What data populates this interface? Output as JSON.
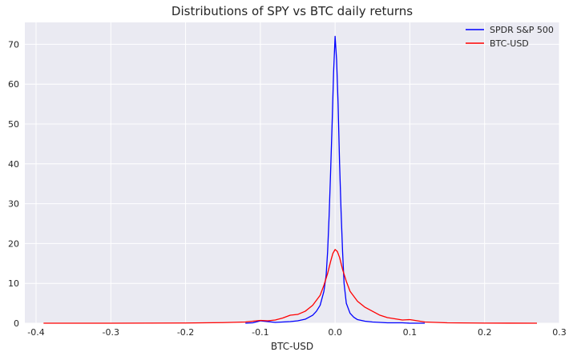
{
  "chart_data": {
    "type": "line",
    "title": "Distributions of SPY vs BTC daily returns",
    "xlabel": "BTC-USD",
    "ylabel": "",
    "xlim": [
      -0.415,
      0.3
    ],
    "ylim": [
      0,
      75.5
    ],
    "xticks": [
      -0.4,
      -0.3,
      -0.2,
      -0.1,
      0.0,
      0.1,
      0.2,
      0.3
    ],
    "xtick_labels": [
      "-0.4",
      "-0.3",
      "-0.2",
      "-0.1",
      "0.0",
      "0.1",
      "0.2",
      "0.3"
    ],
    "yticks": [
      0,
      10,
      20,
      30,
      40,
      50,
      60,
      70
    ],
    "ytick_labels": [
      "0",
      "10",
      "20",
      "30",
      "40",
      "50",
      "60",
      "70"
    ],
    "grid": true,
    "legend_position": "top-right",
    "colors": {
      "background": "#EAEAF2",
      "grid": "#FFFFFF"
    },
    "series": [
      {
        "name": "SPDR S&P 500",
        "color": "#0000FF",
        "x": [
          -0.12,
          -0.11,
          -0.1,
          -0.09,
          -0.08,
          -0.07,
          -0.06,
          -0.05,
          -0.04,
          -0.035,
          -0.03,
          -0.025,
          -0.02,
          -0.015,
          -0.012,
          -0.01,
          -0.008,
          -0.006,
          -0.004,
          -0.002,
          0.0,
          0.002,
          0.004,
          0.006,
          0.008,
          0.01,
          0.012,
          0.015,
          0.02,
          0.025,
          0.03,
          0.04,
          0.05,
          0.06,
          0.07,
          0.08,
          0.09,
          0.1,
          0.12
        ],
        "y": [
          0,
          0.1,
          0.6,
          0.4,
          0.2,
          0.3,
          0.4,
          0.6,
          1.0,
          1.5,
          2.0,
          3.0,
          4.5,
          8.0,
          12,
          18,
          27,
          38,
          50,
          63,
          72,
          66,
          55,
          40,
          28,
          18,
          10,
          5,
          2.5,
          1.5,
          0.9,
          0.5,
          0.3,
          0.2,
          0.1,
          0.1,
          0.1,
          0.0,
          0
        ]
      },
      {
        "name": "BTC-USD",
        "color": "#FF0000",
        "x": [
          -0.39,
          -0.3,
          -0.2,
          -0.15,
          -0.12,
          -0.11,
          -0.1,
          -0.09,
          -0.08,
          -0.07,
          -0.06,
          -0.05,
          -0.04,
          -0.03,
          -0.02,
          -0.015,
          -0.01,
          -0.006,
          -0.003,
          0.0,
          0.003,
          0.006,
          0.01,
          0.015,
          0.02,
          0.03,
          0.04,
          0.05,
          0.06,
          0.07,
          0.08,
          0.09,
          0.1,
          0.11,
          0.12,
          0.15,
          0.2,
          0.27
        ],
        "y": [
          0,
          0,
          0.05,
          0.15,
          0.3,
          0.5,
          0.7,
          0.6,
          0.8,
          1.3,
          2.0,
          2.2,
          3.0,
          4.5,
          7.0,
          9.5,
          12.5,
          15.5,
          17.5,
          18.5,
          18.0,
          16.5,
          13.5,
          10.5,
          8.0,
          5.5,
          4.0,
          3.0,
          2.0,
          1.4,
          1.1,
          0.8,
          0.9,
          0.6,
          0.3,
          0.1,
          0.02,
          0
        ]
      }
    ]
  }
}
